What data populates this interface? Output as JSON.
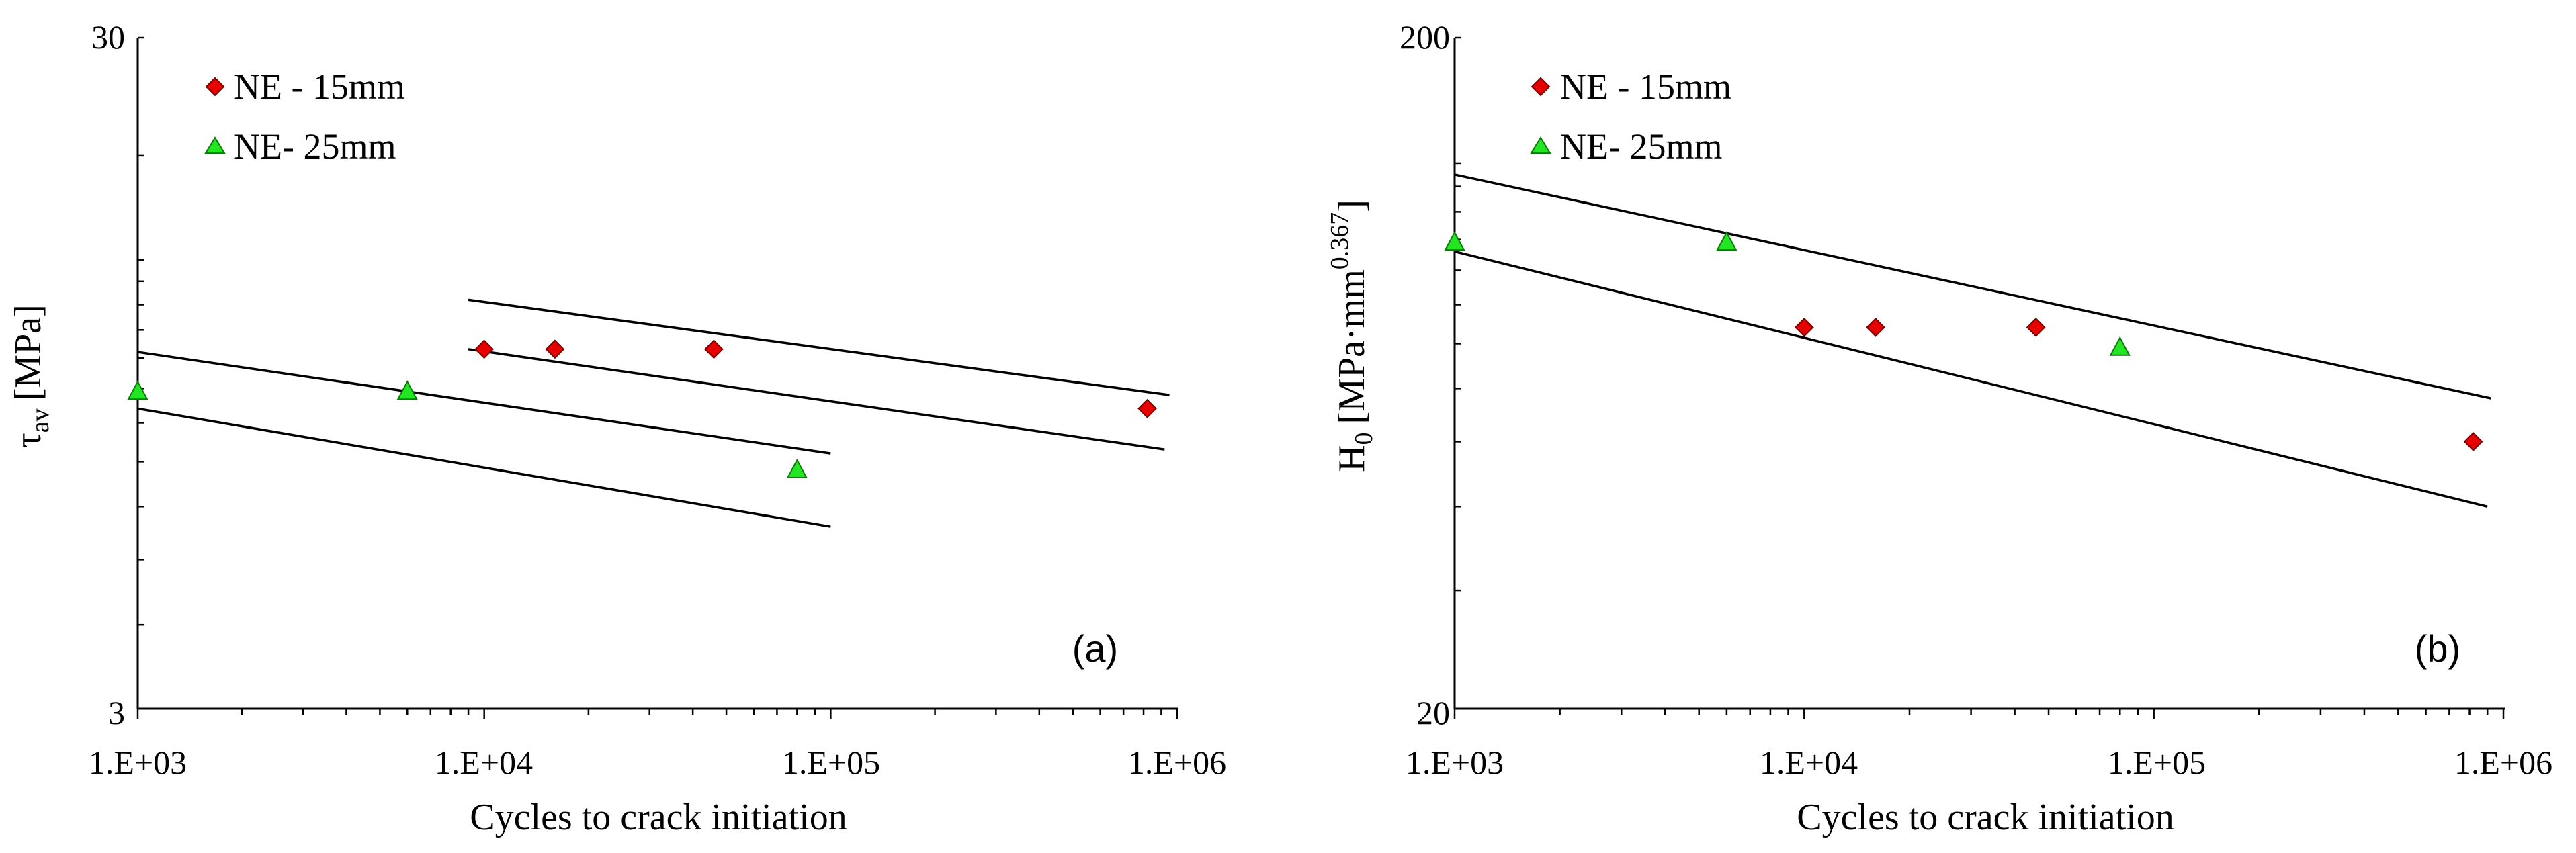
{
  "colors": {
    "axis": "#000000",
    "fit_line": "#000000",
    "ne15_fill": "#e60000",
    "ne15_stroke": "#7a0000",
    "ne25_fill": "#22e622",
    "ne25_stroke": "#0a7a0a"
  },
  "chart_data": [
    {
      "id": "a",
      "type": "scatter",
      "panel_label": "(a)",
      "xlabel": "Cycles to crack initiation",
      "ylabel": "τav [MPa]",
      "ylabel_main": "τ",
      "ylabel_sub": "av",
      "ylabel_unit": "[MPa]",
      "xscale": "log",
      "yscale": "log",
      "xlim": [
        1000,
        1000000
      ],
      "ylim": [
        3,
        30
      ],
      "xticks": [
        {
          "value": 1000,
          "label": "1.E+03"
        },
        {
          "value": 10000,
          "label": "1.E+04"
        },
        {
          "value": 100000,
          "label": "1.E+05"
        },
        {
          "value": 1000000,
          "label": "1.E+06"
        }
      ],
      "yticks": [
        {
          "value": 3,
          "label": "3"
        },
        {
          "value": 30,
          "label": "30"
        }
      ],
      "legend_position": "top-left",
      "series": [
        {
          "name": "NE - 15mm",
          "marker": "diamond",
          "color": "#e60000",
          "points": [
            [
              10000,
              10.3
            ],
            [
              16000,
              10.3
            ],
            [
              46000,
              10.3
            ],
            [
              820000,
              8.4
            ]
          ]
        },
        {
          "name": "NE- 25mm",
          "marker": "triangle",
          "color": "#22e622",
          "points": [
            [
              1000,
              8.9
            ],
            [
              6000,
              8.9
            ],
            [
              80000,
              6.8
            ]
          ]
        }
      ],
      "fit_lines": [
        {
          "name": "NE - 15mm upper band",
          "points": [
            [
              9000,
              12.2
            ],
            [
              950000,
              8.8
            ]
          ]
        },
        {
          "name": "NE - 15mm lower band",
          "points": [
            [
              9000,
              10.3
            ],
            [
              920000,
              7.3
            ]
          ]
        },
        {
          "name": "NE- 25mm upper band",
          "points": [
            [
              1000,
              10.2
            ],
            [
              100000,
              7.2
            ]
          ]
        },
        {
          "name": "NE- 25mm lower band",
          "points": [
            [
              1000,
              8.4
            ],
            [
              100000,
              5.6
            ]
          ]
        }
      ]
    },
    {
      "id": "b",
      "type": "scatter",
      "panel_label": "(b)",
      "xlabel": "Cycles to crack initiation",
      "ylabel": "H0 [MPa·mm0.367]",
      "ylabel_main": "H",
      "ylabel_sub": "0",
      "ylabel_unit_pre": "[MPa·mm",
      "ylabel_sup": "0.367",
      "ylabel_unit_post": "]",
      "xscale": "log",
      "yscale": "log",
      "xlim": [
        1000,
        1000000
      ],
      "ylim": [
        20,
        200
      ],
      "xticks": [
        {
          "value": 1000,
          "label": "1.E+03"
        },
        {
          "value": 10000,
          "label": "1.E+04"
        },
        {
          "value": 100000,
          "label": "1.E+05"
        },
        {
          "value": 1000000,
          "label": "1.E+06"
        }
      ],
      "yticks": [
        {
          "value": 20,
          "label": "20"
        },
        {
          "value": 200,
          "label": "200"
        }
      ],
      "legend_position": "top-left",
      "series": [
        {
          "name": "NE - 15mm",
          "marker": "diamond",
          "color": "#e60000",
          "points": [
            [
              10000,
              74
            ],
            [
              16000,
              74
            ],
            [
              46000,
              74
            ],
            [
              820000,
              50
            ]
          ]
        },
        {
          "name": "NE- 25mm",
          "marker": "triangle",
          "color": "#22e622",
          "points": [
            [
              1000,
              99
            ],
            [
              6000,
              99
            ],
            [
              80000,
              69
            ]
          ]
        }
      ],
      "fit_lines": [
        {
          "name": "upper band",
          "points": [
            [
              1000,
              125
            ],
            [
              920000,
              58
            ]
          ]
        },
        {
          "name": "lower band",
          "points": [
            [
              1000,
              96
            ],
            [
              900000,
              40
            ]
          ]
        }
      ]
    }
  ]
}
